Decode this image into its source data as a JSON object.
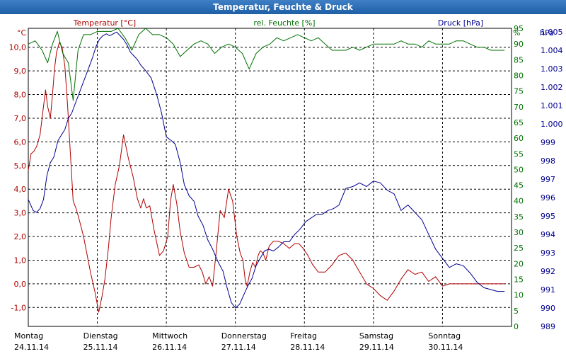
{
  "window": {
    "title": "Temperatur, Feuchte & Druck"
  },
  "colors": {
    "temperature": "#b00000",
    "humidity": "#007000",
    "pressure": "#000090",
    "grid": "#000000",
    "titlebar": "#2a66ad"
  },
  "chart_data": {
    "type": "line",
    "title": "Temperatur, Feuchte & Druck",
    "grid": true,
    "x_ticks": [
      {
        "day": "Montag",
        "date": "24.11.14"
      },
      {
        "day": "Dienstag",
        "date": "25.11.14"
      },
      {
        "day": "Mittwoch",
        "date": "26.11.14"
      },
      {
        "day": "Donnerstag",
        "date": "27.11.14"
      },
      {
        "day": "Freitag",
        "date": "28.11.14"
      },
      {
        "day": "Samstag",
        "date": "29.11.14"
      },
      {
        "day": "Sonntag",
        "date": "30.11.14"
      }
    ],
    "x_unit": "days since 24.11.14 00:00",
    "xlim": [
      0,
      7
    ],
    "axes": {
      "temperature": {
        "label": "Temperatur [°C]",
        "unit": "°C",
        "ylim": [
          -1.8,
          10.8
        ],
        "ticks": [
          "10,0",
          "9,0",
          "8,0",
          "7,0",
          "6,0",
          "5,0",
          "4,0",
          "3,0",
          "2,0",
          "1,0",
          "0,0",
          "-1,0"
        ],
        "tick_values": [
          10,
          9,
          8,
          7,
          6,
          5,
          4,
          3,
          2,
          1,
          0,
          -1
        ]
      },
      "humidity": {
        "label": "rel. Feuchte [%]",
        "unit": "%",
        "ylim": [
          0,
          95
        ],
        "ticks": [
          "95",
          "90",
          "85",
          "80",
          "75",
          "70",
          "65",
          "60",
          "55",
          "50",
          "45",
          "40",
          "35",
          "30",
          "25",
          "20",
          "15",
          "10",
          "5",
          "0"
        ],
        "tick_values": [
          95,
          90,
          85,
          80,
          75,
          70,
          65,
          60,
          55,
          50,
          45,
          40,
          35,
          30,
          25,
          20,
          15,
          10,
          5,
          0
        ]
      },
      "pressure": {
        "label": "Druck [hPa]",
        "unit": "hPa",
        "ylim": [
          989,
          1005.2
        ],
        "ticks": [
          "1.005",
          "1.004",
          "1.003",
          "1.002",
          "1.001",
          "1.000",
          "999",
          "998",
          "997",
          "996",
          "995",
          "994",
          "993",
          "992",
          "991",
          "990",
          "989"
        ],
        "tick_values": [
          1005,
          1004,
          1003,
          1002,
          1001,
          1000,
          999,
          998,
          997,
          996,
          995,
          994,
          993,
          992,
          991,
          990,
          989
        ]
      }
    },
    "series": [
      {
        "name": "Temperatur [°C]",
        "axis": "temperature",
        "x": [
          0,
          0.04,
          0.08,
          0.12,
          0.17,
          0.22,
          0.25,
          0.28,
          0.32,
          0.35,
          0.38,
          0.41,
          0.45,
          0.49,
          0.53,
          0.57,
          0.61,
          0.65,
          0.69,
          0.73,
          0.8,
          0.9,
          0.97,
          1.02,
          1.07,
          1.11,
          1.16,
          1.2,
          1.26,
          1.32,
          1.38,
          1.45,
          1.52,
          1.58,
          1.63,
          1.67,
          1.71,
          1.76,
          1.82,
          1.9,
          1.96,
          2.02,
          2.06,
          2.1,
          2.15,
          2.2,
          2.26,
          2.33,
          2.4,
          2.47,
          2.52,
          2.57,
          2.62,
          2.67,
          2.72,
          2.78,
          2.84,
          2.9,
          2.96,
          3.02,
          3.07,
          3.11,
          3.14,
          3.17,
          3.21,
          3.25,
          3.29,
          3.33,
          3.36,
          3.4,
          3.44,
          3.49,
          3.55,
          3.62,
          3.7,
          3.78,
          3.86,
          3.92,
          3.98,
          4.05,
          4.12,
          4.2,
          4.3,
          4.4,
          4.5,
          4.6,
          4.7,
          4.8,
          4.9,
          5,
          5.1,
          5.2,
          5.3,
          5.4,
          5.5,
          5.6,
          5.7,
          5.8,
          5.9,
          6,
          6.1,
          6.2,
          6.3,
          6.4,
          6.5,
          6.6,
          6.7,
          6.8,
          6.9
        ],
        "y": [
          4.8,
          5.5,
          5.6,
          5.8,
          6.3,
          7.5,
          8.2,
          7.5,
          7.0,
          8.0,
          9.1,
          9.8,
          10.2,
          10.0,
          9.2,
          7.5,
          5.5,
          3.5,
          3.2,
          2.8,
          2.0,
          0.5,
          -0.4,
          -1.2,
          -0.5,
          0.2,
          1.5,
          2.8,
          4.2,
          5.0,
          6.3,
          5.3,
          4.5,
          3.6,
          3.2,
          3.6,
          3.2,
          3.3,
          2.3,
          1.2,
          1.4,
          2.0,
          3.5,
          4.2,
          3.4,
          2.2,
          1.3,
          0.7,
          0.7,
          0.8,
          0.5,
          0.0,
          0.3,
          -0.1,
          1.3,
          3.1,
          2.8,
          4.0,
          3.5,
          2.0,
          1.3,
          1.0,
          0.2,
          -0.1,
          0.5,
          0.9,
          0.7,
          1.2,
          1.4,
          1.3,
          1.0,
          1.6,
          1.8,
          1.8,
          1.7,
          1.5,
          1.7,
          1.7,
          1.5,
          1.2,
          0.8,
          0.5,
          0.5,
          0.8,
          1.2,
          1.3,
          1.0,
          0.5,
          0.0,
          -0.2,
          -0.5,
          -0.7,
          -0.3,
          0.2,
          0.6,
          0.4,
          0.5,
          0.1,
          0.3,
          -0.1,
          0.0,
          0.0,
          0.0,
          0.0,
          0.0,
          0.0,
          0.0,
          0.0,
          0.0
        ]
      },
      {
        "name": "rel. Feuchte [%]",
        "axis": "humidity",
        "x": [
          0,
          0.1,
          0.2,
          0.28,
          0.35,
          0.42,
          0.5,
          0.58,
          0.65,
          0.72,
          0.8,
          0.9,
          1.0,
          1.1,
          1.2,
          1.3,
          1.4,
          1.5,
          1.6,
          1.7,
          1.8,
          1.9,
          2.0,
          2.1,
          2.2,
          2.3,
          2.4,
          2.5,
          2.6,
          2.7,
          2.8,
          2.9,
          3.0,
          3.1,
          3.2,
          3.3,
          3.4,
          3.5,
          3.6,
          3.7,
          3.8,
          3.9,
          4.0,
          4.1,
          4.2,
          4.3,
          4.4,
          4.5,
          4.6,
          4.7,
          4.8,
          4.9,
          5.0,
          5.1,
          5.2,
          5.3,
          5.4,
          5.5,
          5.6,
          5.7,
          5.8,
          5.9,
          6.0,
          6.1,
          6.2,
          6.3,
          6.4,
          6.5,
          6.6,
          6.7,
          6.8,
          6.9
        ],
        "y": [
          90,
          91,
          88,
          84,
          90,
          94,
          87,
          84,
          72,
          88,
          93,
          93,
          94,
          94,
          94,
          95,
          92,
          88,
          93,
          95,
          93,
          93,
          92,
          90,
          86,
          88,
          90,
          91,
          90,
          87,
          89,
          90,
          89,
          87,
          82,
          87,
          89,
          90,
          92,
          91,
          92,
          93,
          92,
          91,
          92,
          90,
          88,
          88,
          88,
          89,
          88,
          89,
          90,
          90,
          90,
          90,
          91,
          90,
          90,
          89,
          91,
          90,
          90,
          90,
          91,
          91,
          90,
          89,
          89,
          88,
          88,
          88
        ]
      },
      {
        "name": "Druck [hPa]",
        "axis": "pressure",
        "x": [
          0,
          0.07,
          0.12,
          0.17,
          0.22,
          0.27,
          0.32,
          0.37,
          0.43,
          0.48,
          0.53,
          0.58,
          0.63,
          0.68,
          0.73,
          0.78,
          0.83,
          0.88,
          0.93,
          0.98,
          1.03,
          1.08,
          1.13,
          1.18,
          1.23,
          1.28,
          1.33,
          1.38,
          1.43,
          1.48,
          1.53,
          1.58,
          1.63,
          1.7,
          1.78,
          1.86,
          1.93,
          2.0,
          2.07,
          2.13,
          2.2,
          2.26,
          2.33,
          2.4,
          2.46,
          2.53,
          2.6,
          2.67,
          2.75,
          2.82,
          2.88,
          2.94,
          3.0,
          3.06,
          3.12,
          3.18,
          3.24,
          3.3,
          3.36,
          3.42,
          3.48,
          3.55,
          3.62,
          3.7,
          3.78,
          3.86,
          3.94,
          4.02,
          4.1,
          4.18,
          4.26,
          4.34,
          4.42,
          4.5,
          4.6,
          4.7,
          4.8,
          4.9,
          5.0,
          5.1,
          5.2,
          5.3,
          5.4,
          5.5,
          5.6,
          5.7,
          5.8,
          5.9,
          6.0,
          6.1,
          6.2,
          6.3,
          6.4,
          6.5,
          6.6,
          6.7,
          6.8,
          6.9
        ],
        "y": [
          995.9,
          995.3,
          995.2,
          995.4,
          995.9,
          997.2,
          997.9,
          998.2,
          999.1,
          999.4,
          999.7,
          1000.3,
          1000.6,
          1001.1,
          1001.6,
          1002.1,
          1002.6,
          1003.1,
          1003.6,
          1004.2,
          1004.6,
          1004.8,
          1004.9,
          1004.8,
          1004.9,
          1005.0,
          1004.8,
          1004.6,
          1004.3,
          1003.9,
          1003.7,
          1003.5,
          1003.2,
          1002.9,
          1002.5,
          1001.6,
          1000.6,
          999.3,
          999.1,
          998.9,
          997.9,
          996.7,
          996.1,
          995.8,
          995.0,
          994.5,
          993.7,
          993.2,
          992.5,
          992.0,
          991.1,
          990.3,
          990.0,
          990.2,
          990.7,
          991.2,
          991.6,
          992.3,
          992.7,
          993.1,
          993.2,
          993.1,
          993.3,
          993.6,
          993.6,
          994.0,
          994.3,
          994.7,
          994.9,
          995.1,
          995.1,
          995.3,
          995.4,
          995.6,
          996.5,
          996.6,
          996.8,
          996.6,
          996.9,
          996.8,
          996.4,
          996.2,
          995.3,
          995.6,
          995.2,
          994.8,
          994.0,
          993.2,
          992.7,
          992.2,
          992.4,
          992.3,
          991.9,
          991.4,
          991.1,
          991.0,
          990.9,
          990.9
        ]
      }
    ]
  }
}
